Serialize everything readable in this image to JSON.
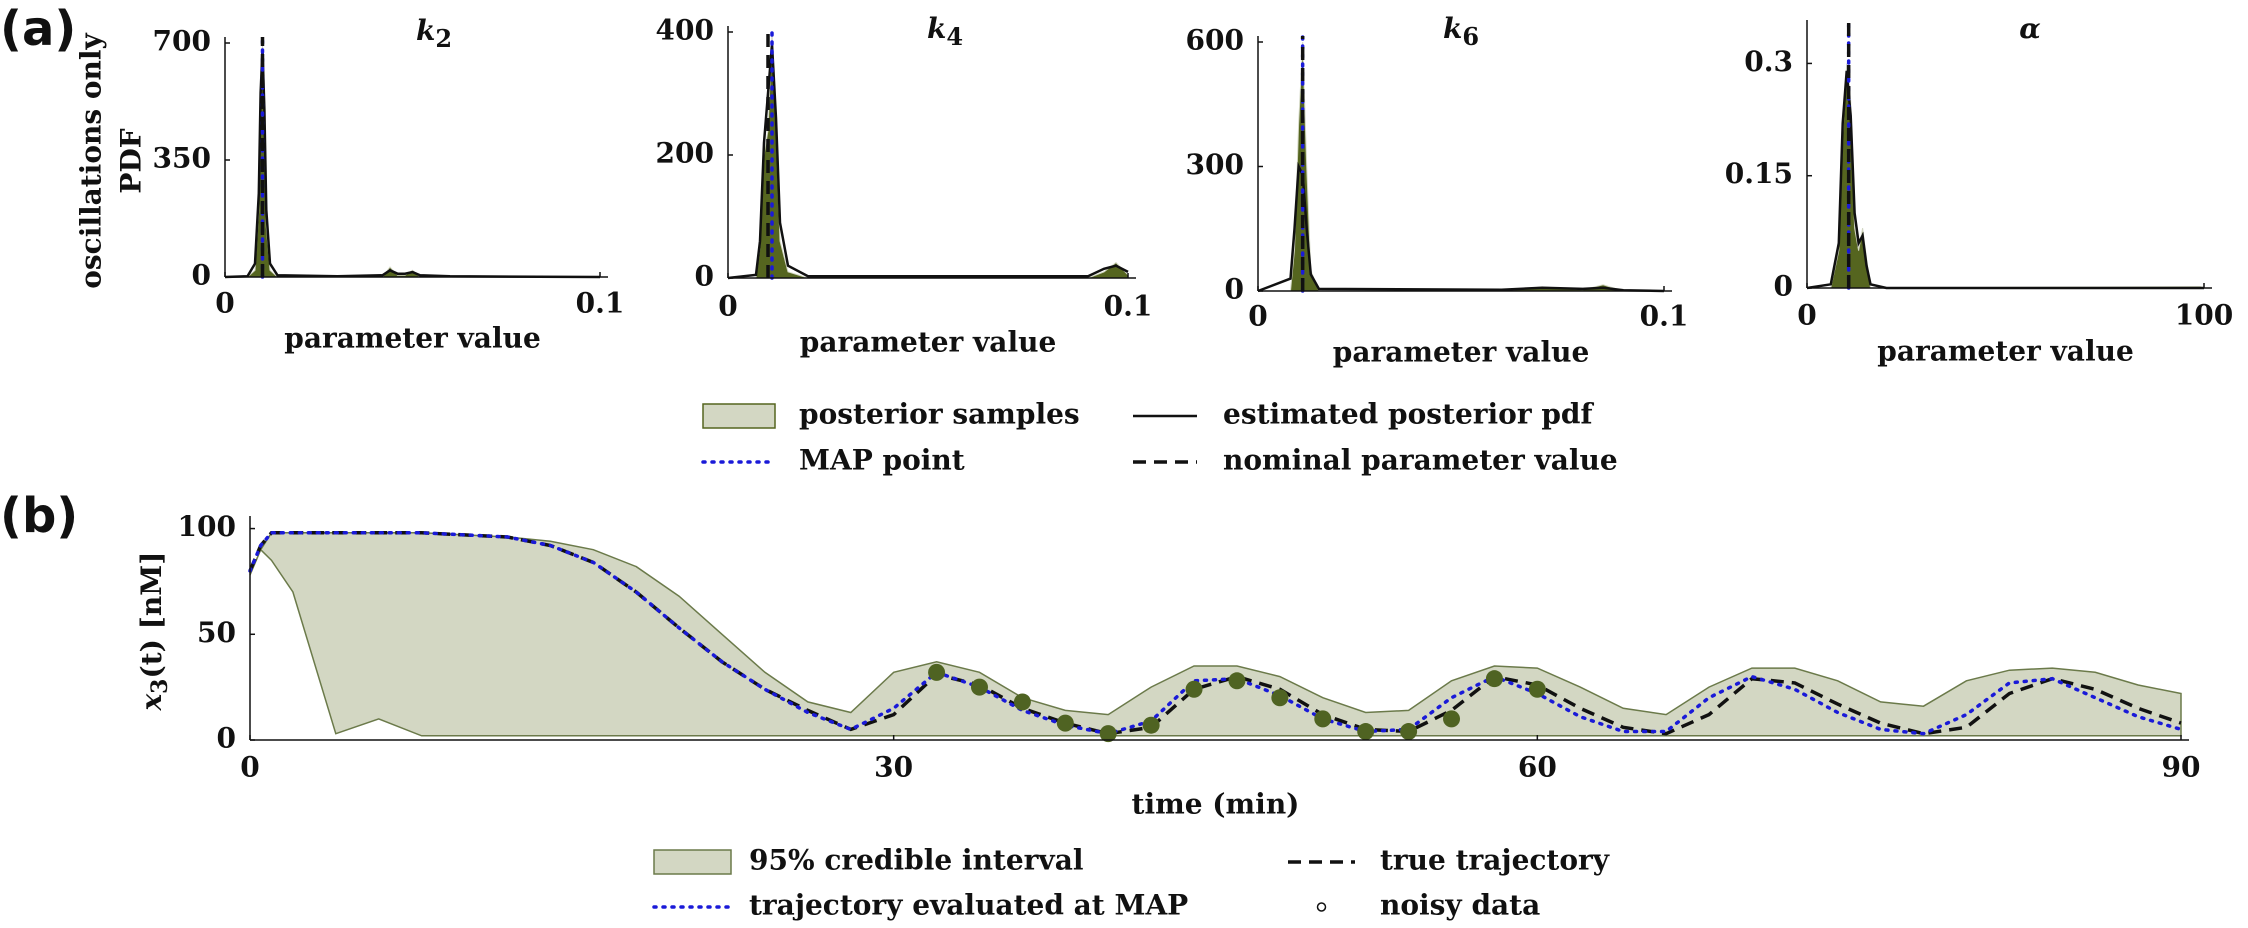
{
  "panels": [
    "(a)",
    "(b)"
  ],
  "chart_data": [
    {
      "type": "area",
      "title": "k",
      "title_subscript": "2",
      "xlabel": "parameter value",
      "ylabel": [
        "oscillations only",
        "PDF"
      ],
      "x": [
        0,
        0.006,
        0.008,
        0.009,
        0.0095,
        0.01,
        0.0105,
        0.011,
        0.012,
        0.014,
        0.03,
        0.042,
        0.044,
        0.046,
        0.048,
        0.05,
        0.052,
        0.06,
        0.1
      ],
      "xlim": [
        0,
        0.1
      ],
      "xticks": [
        0,
        0.1
      ],
      "ylim": [
        0,
        700
      ],
      "yticks": [
        0,
        350,
        700
      ],
      "series": [
        {
          "name": "posterior samples",
          "color": "#55651f",
          "edgecolor": "#d3d7c3",
          "values": [
            0,
            0,
            20,
            200,
            500,
            700,
            450,
            150,
            20,
            0,
            0,
            0,
            30,
            5,
            5,
            20,
            0,
            0,
            0
          ]
        },
        {
          "name": "estimated posterior pdf",
          "color": "#111111",
          "linestyle": "solid",
          "values": [
            0,
            2,
            40,
            250,
            550,
            680,
            500,
            200,
            40,
            5,
            2,
            5,
            20,
            10,
            10,
            15,
            5,
            2,
            0
          ]
        },
        {
          "name": "MAP point",
          "color": "#1a1ad8",
          "linestyle": "dotted",
          "x": 0.01
        },
        {
          "name": "nominal parameter value",
          "color": "#111111",
          "linestyle": "dashed",
          "x": 0.01
        }
      ]
    },
    {
      "type": "area",
      "title": "k",
      "title_subscript": "4",
      "xlabel": "parameter value",
      "x": [
        0,
        0.007,
        0.008,
        0.009,
        0.01,
        0.011,
        0.012,
        0.013,
        0.015,
        0.02,
        0.09,
        0.094,
        0.097,
        0.1
      ],
      "xlim": [
        0,
        0.1
      ],
      "xticks": [
        0,
        0.1
      ],
      "ylim": [
        0,
        400
      ],
      "yticks": [
        0,
        200,
        400
      ],
      "series": [
        {
          "color": "#55651f",
          "edgecolor": "#d3d7c3",
          "values": [
            0,
            0,
            50,
            200,
            240,
            400,
            240,
            60,
            10,
            0,
            0,
            10,
            25,
            5
          ]
        },
        {
          "color": "#111111",
          "linestyle": "solid",
          "values": [
            0,
            5,
            60,
            220,
            300,
            380,
            260,
            90,
            20,
            3,
            3,
            15,
            20,
            10
          ]
        },
        {
          "color": "#1a1ad8",
          "linestyle": "dotted",
          "x": 0.011
        },
        {
          "color": "#111111",
          "linestyle": "dashed",
          "x": 0.01
        }
      ]
    },
    {
      "type": "area",
      "title": "k",
      "title_subscript": "6",
      "xlabel": "parameter value",
      "x": [
        0,
        0.008,
        0.009,
        0.01,
        0.011,
        0.012,
        0.013,
        0.015,
        0.06,
        0.07,
        0.08,
        0.085,
        0.09,
        0.1
      ],
      "xlim": [
        0,
        0.1
      ],
      "xticks": [
        0,
        0.1
      ],
      "ylim": [
        0,
        600
      ],
      "yticks": [
        0,
        300,
        600
      ],
      "series": [
        {
          "color": "#55651f",
          "edgecolor": "#d3d7c3",
          "values": [
            0,
            0,
            100,
            400,
            600,
            300,
            50,
            0,
            0,
            10,
            3,
            15,
            0,
            0
          ]
        },
        {
          "color": "#111111",
          "linestyle": "solid",
          "values": [
            0,
            30,
            150,
            300,
            280,
            150,
            40,
            5,
            3,
            8,
            5,
            8,
            2,
            0
          ]
        },
        {
          "color": "#1a1ad8",
          "linestyle": "dotted",
          "x": 0.011
        },
        {
          "color": "#111111",
          "linestyle": "dashed",
          "x": 0.011
        }
      ]
    },
    {
      "type": "area",
      "title": "α",
      "xlabel": "parameter value",
      "x": [
        0,
        6,
        8,
        9,
        10,
        11,
        12,
        13,
        14,
        15,
        16,
        20,
        99,
        100
      ],
      "xlim": [
        0,
        100
      ],
      "xticks": [
        0,
        100
      ],
      "ylim": [
        0,
        0.35
      ],
      "yticks": [
        0,
        0.15,
        0.3
      ],
      "series": [
        {
          "color": "#55651f",
          "edgecolor": "#d3d7c3",
          "values": [
            0,
            0,
            0.05,
            0.2,
            0.3,
            0.25,
            0.08,
            0.05,
            0.08,
            0.04,
            0,
            0,
            0.002,
            0
          ]
        },
        {
          "color": "#111111",
          "linestyle": "solid",
          "values": [
            0,
            0.005,
            0.06,
            0.22,
            0.29,
            0.23,
            0.1,
            0.06,
            0.07,
            0.03,
            0.005,
            0,
            0,
            0
          ]
        },
        {
          "color": "#1a1ad8",
          "linestyle": "dotted",
          "x": 10.5
        },
        {
          "color": "#111111",
          "linestyle": "dashed",
          "x": 10.5
        }
      ]
    },
    {
      "type": "line",
      "xlabel": "time (min)",
      "ylabel": "x",
      "ylabel_subscript": "3",
      "ylabel_suffix": "(t) [nM]",
      "x": [
        0,
        0.5,
        1,
        2,
        4,
        6,
        8,
        10,
        12,
        14,
        16,
        18,
        20,
        22,
        24,
        26,
        28,
        30,
        32,
        34,
        36,
        38,
        40,
        42,
        44,
        46,
        48,
        50,
        52,
        54,
        56,
        58,
        60,
        62,
        64,
        66,
        68,
        70,
        72,
        74,
        76,
        78,
        80,
        82,
        84,
        86,
        88,
        90
      ],
      "xlim": [
        0,
        90
      ],
      "xticks": [
        0,
        30,
        60,
        90
      ],
      "ylim": [
        0,
        105
      ],
      "yticks": [
        0,
        50,
        100
      ],
      "series": [
        {
          "name": "95% credible interval",
          "color": "#d3d7c3",
          "edgecolor": "#6b7a4a",
          "values": [
            78,
            90,
            98,
            98,
            98,
            98,
            98,
            97,
            96,
            94,
            90,
            82,
            68,
            50,
            32,
            18,
            13,
            32,
            37,
            32,
            20,
            14,
            12,
            25,
            35,
            35,
            30,
            20,
            13,
            14,
            28,
            35,
            34,
            25,
            15,
            12,
            25,
            34,
            34,
            28,
            18,
            16,
            28,
            33,
            34,
            32,
            26,
            22
          ],
          "lower": [
            78,
            90,
            85,
            70,
            3,
            10,
            2,
            2,
            2,
            2,
            2,
            2,
            2,
            2,
            2,
            2,
            2,
            2,
            2,
            2,
            2,
            2,
            2,
            2,
            2,
            2,
            2,
            2,
            2,
            2,
            2,
            2,
            2,
            2,
            2,
            2,
            2,
            2,
            2,
            2,
            2,
            2,
            2,
            2,
            2,
            2,
            2,
            2
          ]
        },
        {
          "name": "true trajectory",
          "color": "#111111",
          "linestyle": "dashed",
          "values": [
            80,
            92,
            98,
            98,
            98,
            98,
            98,
            97,
            96,
            92,
            84,
            70,
            53,
            37,
            24,
            14,
            5,
            12,
            31,
            26,
            15,
            8,
            3,
            6,
            24,
            30,
            24,
            12,
            5,
            4,
            14,
            30,
            26,
            15,
            6,
            3,
            12,
            29,
            27,
            17,
            8,
            3,
            6,
            22,
            29,
            24,
            15,
            8
          ]
        },
        {
          "name": "trajectory evaluated at MAP",
          "color": "#1a1ad8",
          "linestyle": "dotted",
          "values": [
            80,
            92,
            98,
            98,
            98,
            98,
            98,
            97,
            96,
            92,
            84,
            70,
            53,
            37,
            24,
            13,
            5,
            15,
            32,
            25,
            14,
            7,
            3,
            9,
            28,
            29,
            21,
            10,
            4,
            5,
            20,
            30,
            22,
            11,
            4,
            4,
            20,
            30,
            24,
            13,
            5,
            3,
            12,
            27,
            29,
            20,
            11,
            5
          ]
        },
        {
          "name": "noisy data",
          "color": "#4f6322",
          "marker": "o",
          "x": [
            32,
            34,
            36,
            38,
            40,
            42,
            44,
            46,
            48,
            50,
            52,
            54,
            56,
            58,
            60
          ],
          "values": [
            32,
            25,
            18,
            8,
            3,
            7,
            24,
            28,
            20,
            10,
            4,
            4,
            10,
            29,
            24
          ]
        }
      ]
    }
  ]
}
